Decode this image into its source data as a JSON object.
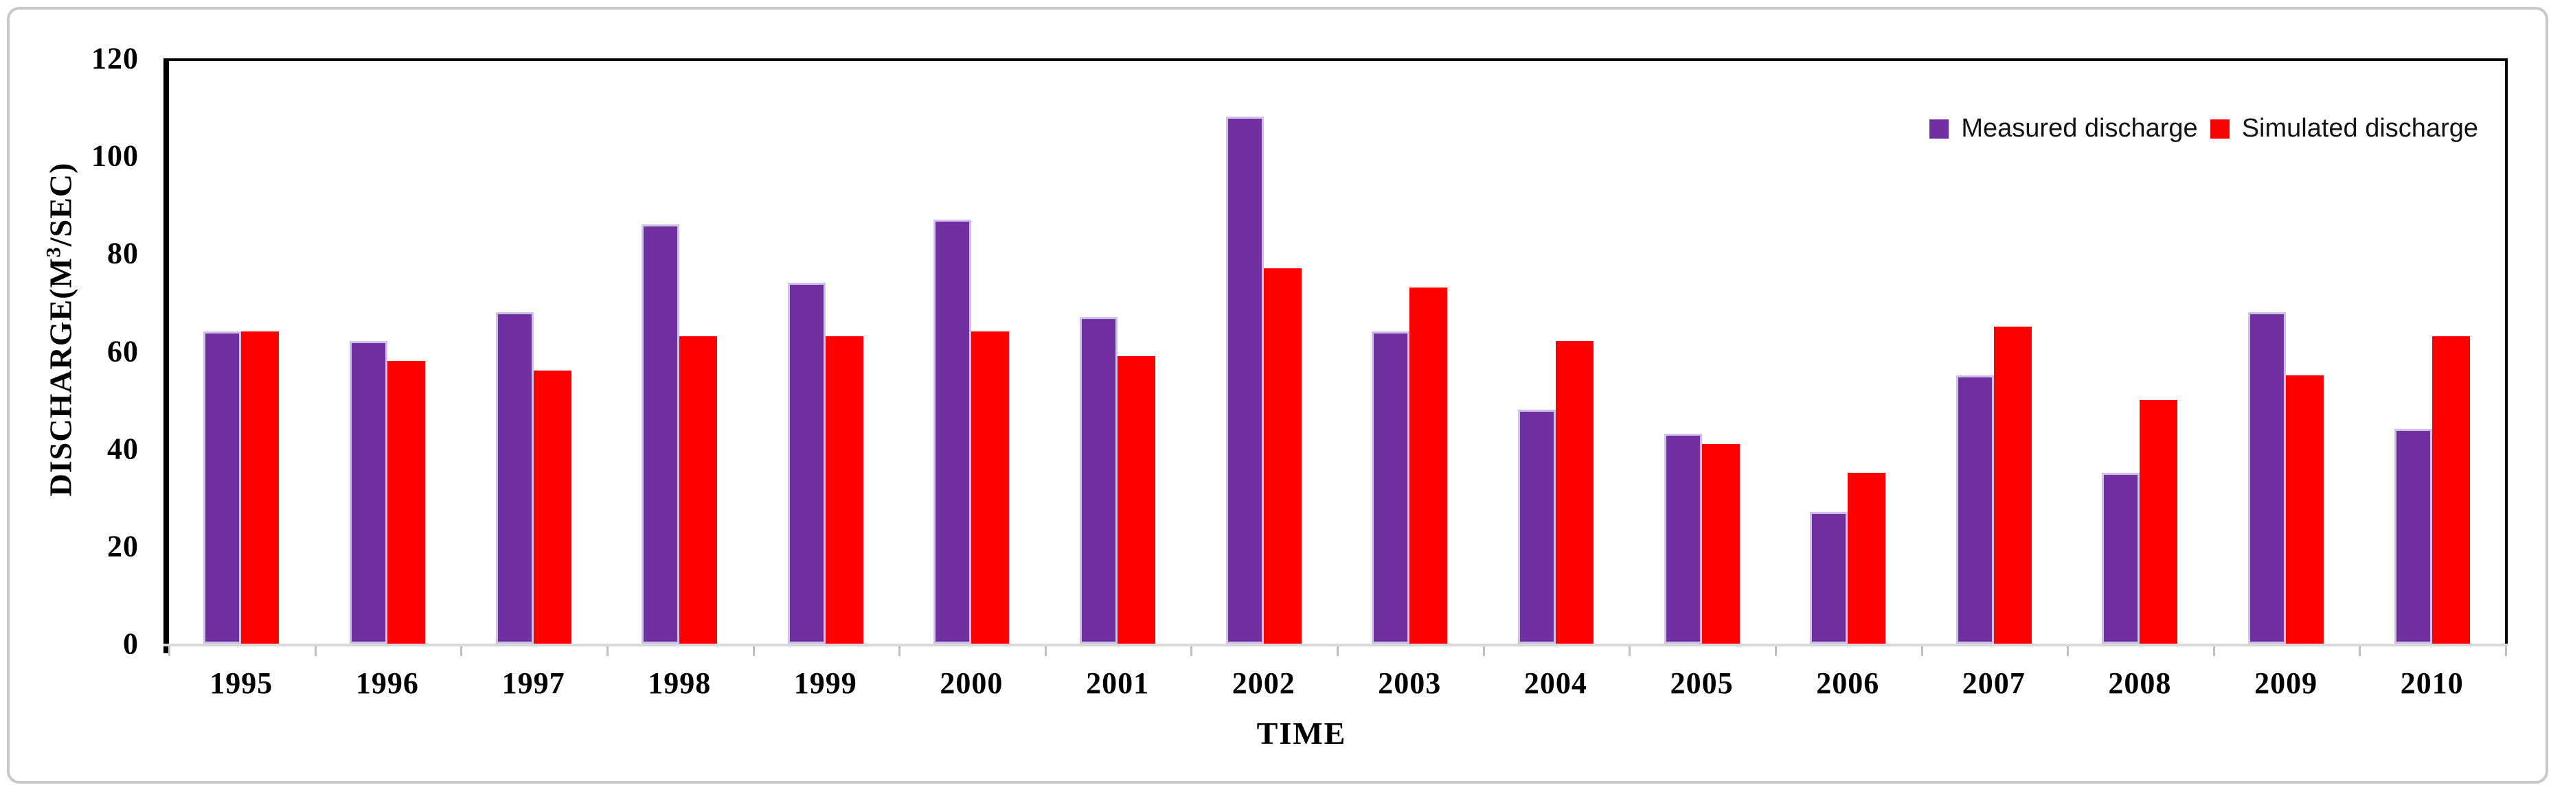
{
  "figure": {
    "ylabel_prefix": "DISCHARGE(M",
    "ylabel_sup": "3",
    "ylabel_suffix": "/SEC)",
    "xlabel": "TIME"
  },
  "chart_data": {
    "type": "bar",
    "xlabel": "TIME",
    "ylabel": "DISCHARGE(M³/SEC)",
    "ylim": [
      0,
      120
    ],
    "yticks": [
      0,
      20,
      40,
      60,
      80,
      100,
      120
    ],
    "grid": false,
    "legend_position": "top-right-inside",
    "categories": [
      "1995",
      "1996",
      "1997",
      "1998",
      "1999",
      "2000",
      "2001",
      "2002",
      "2003",
      "2004",
      "2005",
      "2006",
      "2007",
      "2008",
      "2009",
      "2010"
    ],
    "series": [
      {
        "name": "Measured discharge",
        "color": "#7030A0",
        "values": [
          64,
          62,
          68,
          86,
          74,
          87,
          67,
          108,
          64,
          48,
          43,
          27,
          55,
          35,
          68,
          44
        ]
      },
      {
        "name": "Simulated discharge",
        "color": "#FF0000",
        "values": [
          64,
          58,
          56,
          63,
          63,
          64,
          59,
          77,
          73,
          62,
          41,
          35,
          65,
          50,
          55,
          63
        ]
      }
    ]
  }
}
